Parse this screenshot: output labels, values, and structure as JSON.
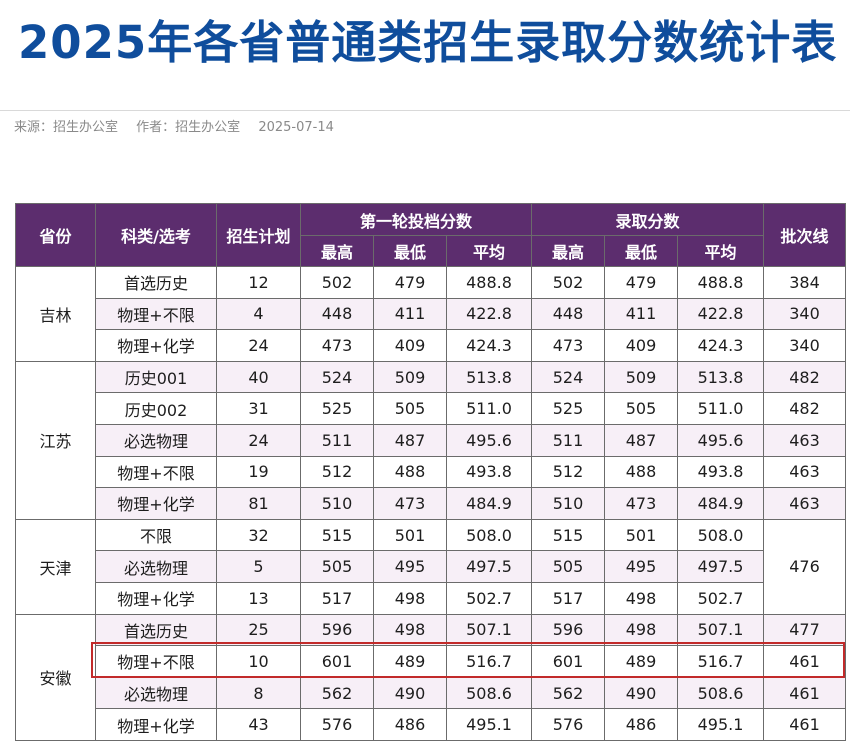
{
  "page": {
    "title": "2025年各省普通类招生录取分数统计表",
    "source": "来源：招生办公室",
    "author": "作者：招生办公室",
    "date": "2025-07-14"
  },
  "table": {
    "headers": {
      "province": "省份",
      "category": "科类/选考",
      "plan": "招生计划",
      "group1": "第一轮投档分数",
      "group2": "录取分数",
      "batch": "批次线",
      "max": "最高",
      "min": "最低",
      "avg": "平均"
    },
    "provinces": [
      {
        "name": "吉林",
        "rows": [
          {
            "category": "首选历史",
            "plan": "12",
            "r1_max": "502",
            "r1_min": "479",
            "r1_avg": "488.8",
            "ad_max": "502",
            "ad_min": "479",
            "ad_avg": "488.8",
            "batch": "384"
          },
          {
            "category": "物理+不限",
            "plan": "4",
            "r1_max": "448",
            "r1_min": "411",
            "r1_avg": "422.8",
            "ad_max": "448",
            "ad_min": "411",
            "ad_avg": "422.8",
            "batch": "340"
          },
          {
            "category": "物理+化学",
            "plan": "24",
            "r1_max": "473",
            "r1_min": "409",
            "r1_avg": "424.3",
            "ad_max": "473",
            "ad_min": "409",
            "ad_avg": "424.3",
            "batch": "340"
          }
        ]
      },
      {
        "name": "江苏",
        "rows": [
          {
            "category": "历史001",
            "plan": "40",
            "r1_max": "524",
            "r1_min": "509",
            "r1_avg": "513.8",
            "ad_max": "524",
            "ad_min": "509",
            "ad_avg": "513.8",
            "batch": "482"
          },
          {
            "category": "历史002",
            "plan": "31",
            "r1_max": "525",
            "r1_min": "505",
            "r1_avg": "511.0",
            "ad_max": "525",
            "ad_min": "505",
            "ad_avg": "511.0",
            "batch": "482"
          },
          {
            "category": "必选物理",
            "plan": "24",
            "r1_max": "511",
            "r1_min": "487",
            "r1_avg": "495.6",
            "ad_max": "511",
            "ad_min": "487",
            "ad_avg": "495.6",
            "batch": "463"
          },
          {
            "category": "物理+不限",
            "plan": "19",
            "r1_max": "512",
            "r1_min": "488",
            "r1_avg": "493.8",
            "ad_max": "512",
            "ad_min": "488",
            "ad_avg": "493.8",
            "batch": "463"
          },
          {
            "category": "物理+化学",
            "plan": "81",
            "r1_max": "510",
            "r1_min": "473",
            "r1_avg": "484.9",
            "ad_max": "510",
            "ad_min": "473",
            "ad_avg": "484.9",
            "batch": "463"
          }
        ]
      },
      {
        "name": "天津",
        "batch_merged": "476",
        "rows": [
          {
            "category": "不限",
            "plan": "32",
            "r1_max": "515",
            "r1_min": "501",
            "r1_avg": "508.0",
            "ad_max": "515",
            "ad_min": "501",
            "ad_avg": "508.0"
          },
          {
            "category": "必选物理",
            "plan": "5",
            "r1_max": "505",
            "r1_min": "495",
            "r1_avg": "497.5",
            "ad_max": "505",
            "ad_min": "495",
            "ad_avg": "497.5"
          },
          {
            "category": "物理+化学",
            "plan": "13",
            "r1_max": "517",
            "r1_min": "498",
            "r1_avg": "502.7",
            "ad_max": "517",
            "ad_min": "498",
            "ad_avg": "502.7"
          }
        ]
      },
      {
        "name": "安徽",
        "rows": [
          {
            "category": "首选历史",
            "plan": "25",
            "r1_max": "596",
            "r1_min": "498",
            "r1_avg": "507.1",
            "ad_max": "596",
            "ad_min": "498",
            "ad_avg": "507.1",
            "batch": "477"
          },
          {
            "category": "物理+不限",
            "plan": "10",
            "r1_max": "601",
            "r1_min": "489",
            "r1_avg": "516.7",
            "ad_max": "601",
            "ad_min": "489",
            "ad_avg": "516.7",
            "batch": "461",
            "highlighted": true
          },
          {
            "category": "必选物理",
            "plan": "8",
            "r1_max": "562",
            "r1_min": "490",
            "r1_avg": "508.6",
            "ad_max": "562",
            "ad_min": "490",
            "ad_avg": "508.6",
            "batch": "461"
          },
          {
            "category": "物理+化学",
            "plan": "43",
            "r1_max": "576",
            "r1_min": "486",
            "r1_avg": "495.1",
            "ad_max": "576",
            "ad_min": "486",
            "ad_avg": "495.1",
            "batch": "461"
          }
        ]
      }
    ]
  },
  "colors": {
    "title": "#0f4d9c",
    "header_bg": "#5c2d6e",
    "stripe": "#f7eff7",
    "highlight_border": "#c22a2a"
  }
}
